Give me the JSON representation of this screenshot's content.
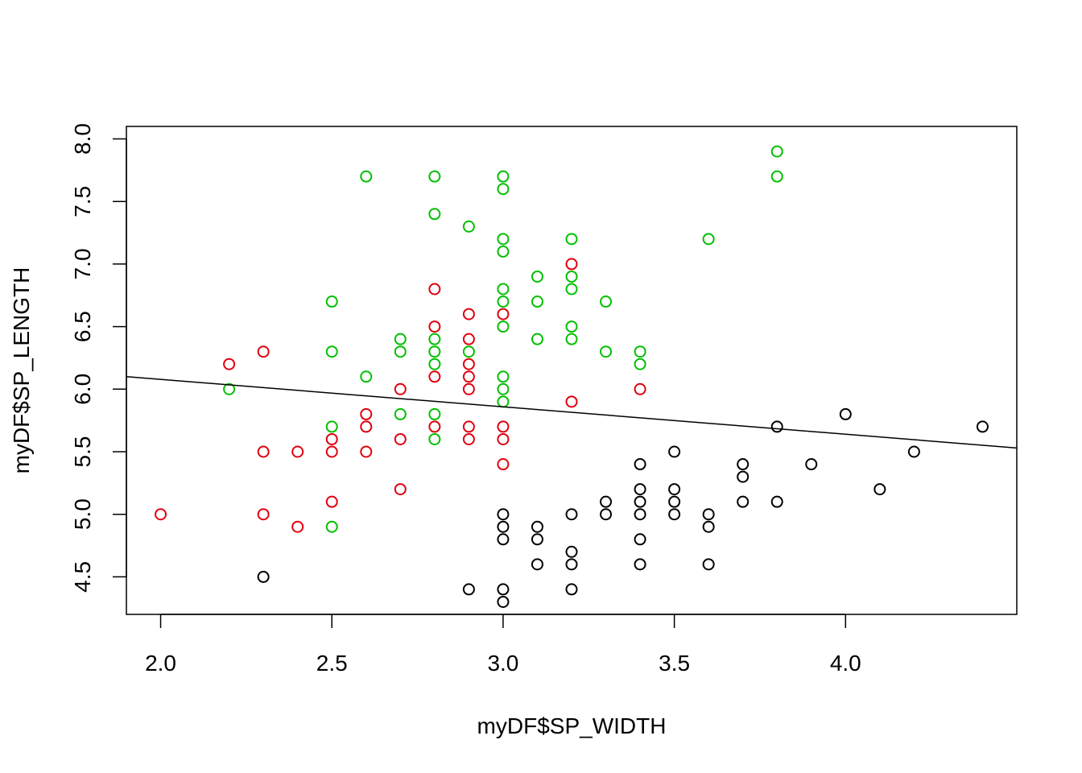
{
  "chart_data": {
    "type": "scatter",
    "xlabel": "myDF$SP_WIDTH",
    "ylabel": "myDF$SP_LENGTH",
    "xlim": [
      1.9,
      4.5
    ],
    "ylim": [
      4.2,
      8.1
    ],
    "x_ticks": [
      "2.0",
      "2.5",
      "3.0",
      "3.5",
      "4.0"
    ],
    "y_ticks": [
      "4.5",
      "5.0",
      "5.5",
      "6.0",
      "6.5",
      "7.0",
      "7.5",
      "8.0"
    ],
    "grid": false,
    "legend": "none",
    "regression_line": {
      "x": [
        1.9,
        4.5
      ],
      "y": [
        6.1,
        5.53
      ]
    },
    "series": [
      {
        "color": "#000000",
        "points": [
          [
            2.3,
            4.5
          ],
          [
            2.9,
            4.4
          ],
          [
            3.0,
            5.0
          ],
          [
            3.0,
            4.9
          ],
          [
            3.0,
            4.8
          ],
          [
            3.0,
            4.4
          ],
          [
            3.0,
            4.3
          ],
          [
            3.1,
            4.9
          ],
          [
            3.1,
            4.8
          ],
          [
            3.1,
            4.6
          ],
          [
            3.2,
            5.0
          ],
          [
            3.2,
            4.7
          ],
          [
            3.2,
            4.6
          ],
          [
            3.2,
            4.4
          ],
          [
            3.3,
            5.1
          ],
          [
            3.3,
            5.0
          ],
          [
            3.4,
            5.4
          ],
          [
            3.4,
            5.2
          ],
          [
            3.4,
            5.1
          ],
          [
            3.4,
            5.0
          ],
          [
            3.4,
            4.8
          ],
          [
            3.4,
            4.6
          ],
          [
            3.5,
            5.5
          ],
          [
            3.5,
            5.2
          ],
          [
            3.5,
            5.1
          ],
          [
            3.5,
            5.0
          ],
          [
            3.6,
            5.0
          ],
          [
            3.6,
            4.9
          ],
          [
            3.6,
            4.6
          ],
          [
            3.7,
            5.4
          ],
          [
            3.7,
            5.3
          ],
          [
            3.7,
            5.1
          ],
          [
            3.8,
            5.7
          ],
          [
            3.8,
            5.1
          ],
          [
            3.9,
            5.4
          ],
          [
            4.0,
            5.8
          ],
          [
            4.1,
            5.2
          ],
          [
            4.2,
            5.5
          ],
          [
            4.4,
            5.7
          ]
        ]
      },
      {
        "color": "#e0000f",
        "points": [
          [
            2.0,
            5.0
          ],
          [
            2.2,
            6.2
          ],
          [
            2.3,
            6.3
          ],
          [
            2.3,
            5.5
          ],
          [
            2.3,
            5.0
          ],
          [
            2.4,
            5.5
          ],
          [
            2.4,
            4.9
          ],
          [
            2.5,
            5.6
          ],
          [
            2.5,
            5.5
          ],
          [
            2.5,
            5.1
          ],
          [
            2.6,
            5.8
          ],
          [
            2.6,
            5.7
          ],
          [
            2.6,
            5.5
          ],
          [
            2.7,
            6.0
          ],
          [
            2.7,
            5.6
          ],
          [
            2.7,
            5.2
          ],
          [
            2.8,
            6.8
          ],
          [
            2.8,
            6.5
          ],
          [
            2.8,
            6.1
          ],
          [
            2.8,
            5.7
          ],
          [
            2.9,
            6.6
          ],
          [
            2.9,
            6.4
          ],
          [
            2.9,
            6.2
          ],
          [
            2.9,
            6.1
          ],
          [
            2.9,
            6.0
          ],
          [
            2.9,
            5.7
          ],
          [
            2.9,
            5.6
          ],
          [
            3.0,
            6.6
          ],
          [
            3.0,
            5.7
          ],
          [
            3.0,
            5.6
          ],
          [
            3.0,
            5.4
          ],
          [
            3.2,
            7.0
          ],
          [
            3.2,
            5.9
          ],
          [
            3.4,
            6.0
          ]
        ]
      },
      {
        "color": "#00c000",
        "points": [
          [
            2.2,
            6.0
          ],
          [
            2.5,
            6.7
          ],
          [
            2.5,
            6.3
          ],
          [
            2.5,
            5.7
          ],
          [
            2.5,
            4.9
          ],
          [
            2.6,
            7.7
          ],
          [
            2.6,
            6.1
          ],
          [
            2.7,
            6.4
          ],
          [
            2.7,
            6.3
          ],
          [
            2.7,
            5.8
          ],
          [
            2.8,
            7.7
          ],
          [
            2.8,
            7.4
          ],
          [
            2.8,
            6.4
          ],
          [
            2.8,
            6.3
          ],
          [
            2.8,
            6.2
          ],
          [
            2.8,
            5.8
          ],
          [
            2.8,
            5.6
          ],
          [
            2.9,
            7.3
          ],
          [
            2.9,
            6.3
          ],
          [
            3.0,
            7.7
          ],
          [
            3.0,
            7.6
          ],
          [
            3.0,
            7.2
          ],
          [
            3.0,
            7.1
          ],
          [
            3.0,
            6.8
          ],
          [
            3.0,
            6.7
          ],
          [
            3.0,
            6.5
          ],
          [
            3.0,
            6.1
          ],
          [
            3.0,
            6.0
          ],
          [
            3.0,
            5.9
          ],
          [
            3.1,
            6.9
          ],
          [
            3.1,
            6.7
          ],
          [
            3.1,
            6.4
          ],
          [
            3.2,
            7.2
          ],
          [
            3.2,
            6.9
          ],
          [
            3.2,
            6.8
          ],
          [
            3.2,
            6.5
          ],
          [
            3.2,
            6.4
          ],
          [
            3.3,
            6.7
          ],
          [
            3.3,
            6.3
          ],
          [
            3.4,
            6.3
          ],
          [
            3.4,
            6.2
          ],
          [
            3.6,
            7.2
          ],
          [
            3.8,
            7.9
          ],
          [
            3.8,
            7.7
          ]
        ]
      }
    ]
  }
}
